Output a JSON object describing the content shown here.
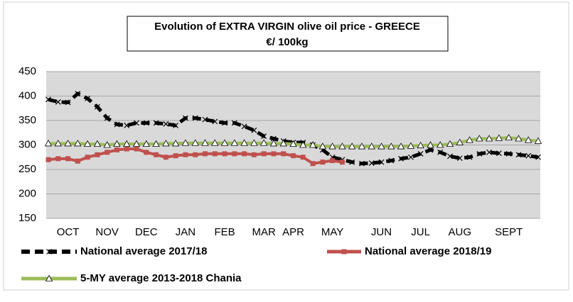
{
  "chart_data": {
    "type": "line",
    "title": "Evolution of EXTRA VIRGIN olive oil price - GREECE",
    "subtitle": "€/ 100kg",
    "categories": [
      null,
      null,
      "OCT",
      null,
      null,
      null,
      "NOV",
      null,
      null,
      null,
      "DEC",
      null,
      null,
      null,
      "JAN",
      null,
      null,
      null,
      "FEB",
      null,
      null,
      null,
      "MAR",
      null,
      null,
      "APR",
      null,
      null,
      null,
      "MAY",
      null,
      null,
      null,
      null,
      "JUN",
      null,
      null,
      null,
      "JUL",
      null,
      null,
      null,
      "AUG",
      null,
      null,
      null,
      null,
      "SEPT",
      null,
      null,
      null
    ],
    "series": [
      {
        "name": "National average 2017/18",
        "color": "#000000",
        "values": [
          393,
          388,
          387,
          405,
          395,
          378,
          355,
          342,
          340,
          345,
          345,
          345,
          343,
          340,
          355,
          355,
          352,
          348,
          345,
          345,
          338,
          330,
          318,
          313,
          308,
          305,
          305,
          300,
          290,
          275,
          270,
          265,
          262,
          263,
          265,
          268,
          272,
          275,
          282,
          290,
          285,
          277,
          273,
          275,
          282,
          285,
          283,
          282,
          280,
          278,
          275
        ]
      },
      {
        "name": "National average 2018/19",
        "color": "#c0504d",
        "values": [
          270,
          272,
          272,
          267,
          275,
          280,
          285,
          290,
          292,
          292,
          285,
          280,
          275,
          278,
          280,
          280,
          282,
          282,
          282,
          282,
          282,
          280,
          282,
          282,
          282,
          278,
          275,
          262,
          265,
          268,
          265,
          null,
          null,
          null,
          null,
          null,
          null,
          null,
          null,
          null,
          null,
          null,
          null,
          null,
          null,
          null,
          null,
          null,
          null,
          null,
          null
        ]
      },
      {
        "name": "5-MY average 2013-2018 Chania",
        "color": "#9bbb59",
        "values": [
          303,
          303,
          303,
          303,
          302,
          302,
          300,
          302,
          302,
          302,
          302,
          302,
          303,
          303,
          304,
          304,
          304,
          304,
          304,
          304,
          304,
          304,
          304,
          303,
          303,
          302,
          300,
          300,
          297,
          297,
          297,
          297,
          297,
          297,
          297,
          297,
          297,
          298,
          299,
          300,
          300,
          302,
          305,
          310,
          313,
          313,
          314,
          315,
          313,
          310,
          308
        ]
      }
    ],
    "ylim": [
      150,
      450
    ],
    "yticks": [
      150,
      200,
      250,
      300,
      350,
      400,
      450
    ],
    "grid": true
  }
}
